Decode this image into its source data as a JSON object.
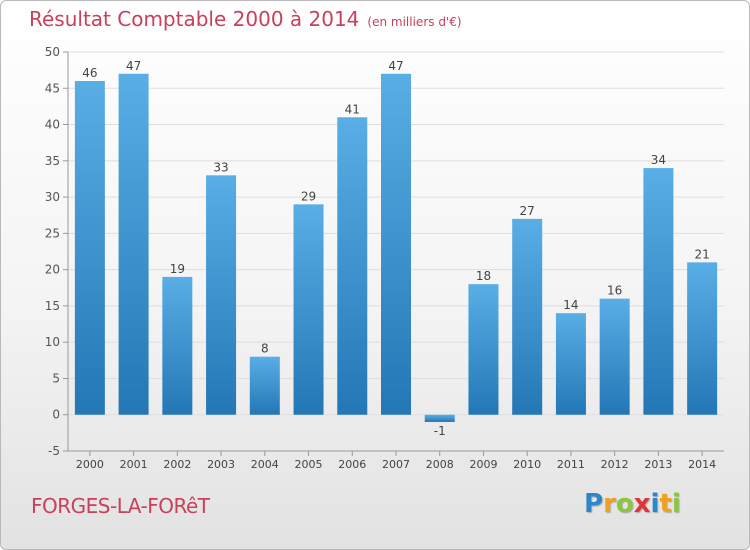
{
  "title": "Résultat Comptable 2000 à 2014",
  "unit": "(en milliers d'€)",
  "commune": "FORGES-LA-FORêT",
  "logo": {
    "text": "Proxiti",
    "letters": [
      {
        "char": "P",
        "color": "#2e86c8"
      },
      {
        "char": "r",
        "color": "#f2a11d"
      },
      {
        "char": "o",
        "color": "#8cc63f"
      },
      {
        "char": "x",
        "color": "#e2333b"
      },
      {
        "char": "i",
        "color": "#2e86c8"
      },
      {
        "char": "t",
        "color": "#f2a11d"
      },
      {
        "char": "i",
        "color": "#8cc63f"
      }
    ]
  },
  "colors": {
    "title": "#c8405a",
    "bar_light": "#5aaee6",
    "bar_dark": "#2377b5",
    "grid": "#dedede",
    "axis": "#999999"
  },
  "chart_data": {
    "type": "bar",
    "categories": [
      "2000",
      "2001",
      "2002",
      "2003",
      "2004",
      "2005",
      "2006",
      "2007",
      "2008",
      "2009",
      "2010",
      "2011",
      "2012",
      "2013",
      "2014"
    ],
    "values": [
      46,
      47,
      19,
      33,
      8,
      29,
      41,
      47,
      -1,
      18,
      27,
      14,
      16,
      34,
      21
    ],
    "data_labels": [
      "46",
      "47",
      "19",
      "33",
      "8",
      "29",
      "41",
      "47",
      "-1",
      "18",
      "27",
      "14",
      "16",
      "34",
      "21"
    ],
    "yticks": [
      -5,
      0,
      5,
      10,
      15,
      20,
      25,
      30,
      35,
      40,
      45,
      50
    ],
    "ylim": [
      -5,
      50
    ],
    "grid": true,
    "legend": "none"
  }
}
